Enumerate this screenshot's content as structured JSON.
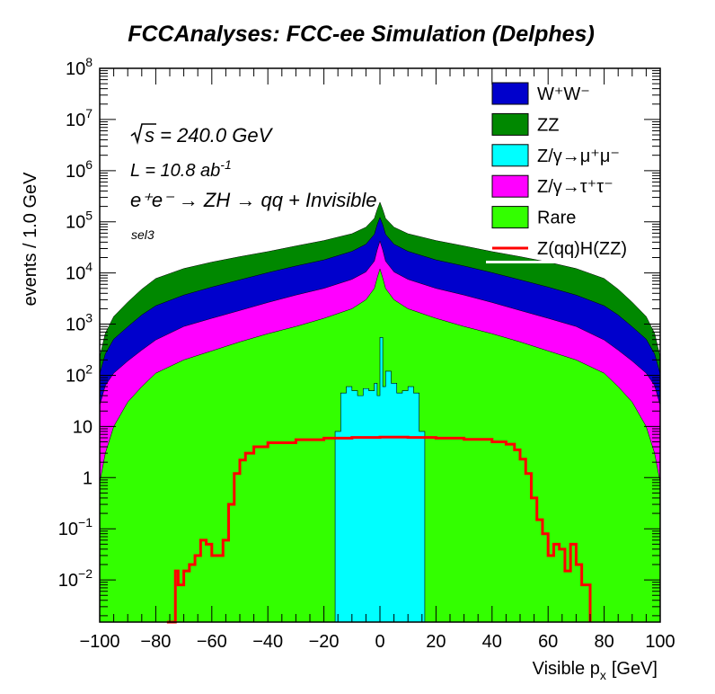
{
  "chart_data": {
    "type": "area",
    "title": "FCCAnalyses: FCC-ee Simulation (Delphes)",
    "xlabel": "Visible p",
    "xlabel_sub": "x",
    "xlabel_unit": "[GeV]",
    "ylabel": "events / 1.0 GeV",
    "xlim": [
      -100,
      100
    ],
    "ylim": [
      0.0015,
      100000000
    ],
    "yscale": "log",
    "grid": false,
    "legend_position": "top-right",
    "x_ticks": [
      "−100",
      "−80",
      "−60",
      "−40",
      "−20",
      "0",
      "20",
      "40",
      "60",
      "80",
      "100"
    ],
    "y_ticks": [
      {
        "base": "10",
        "exp": "−2"
      },
      {
        "base": "10",
        "exp": "−1"
      },
      {
        "base": "1",
        "exp": ""
      },
      {
        "base": "10",
        "exp": ""
      },
      {
        "base": "10",
        "exp": "2"
      },
      {
        "base": "10",
        "exp": "3"
      },
      {
        "base": "10",
        "exp": "4"
      },
      {
        "base": "10",
        "exp": "5"
      },
      {
        "base": "10",
        "exp": "6"
      },
      {
        "base": "10",
        "exp": "7"
      },
      {
        "base": "10",
        "exp": "8"
      }
    ],
    "annotations": {
      "sqrt_s": "s = 240.0 GeV",
      "lumi_main": "L = 10.8 ab",
      "lumi_exp": "-1",
      "process": "e⁺e⁻ → ZH → qq + Invisible",
      "selection": "sel3"
    },
    "stack": {
      "x": [
        -100,
        -98,
        -95,
        -90,
        -85,
        -80,
        -70,
        -60,
        -50,
        -40,
        -30,
        -20,
        -10,
        -5,
        -2,
        -1,
        0,
        1,
        2,
        5,
        10,
        20,
        30,
        40,
        50,
        60,
        70,
        80,
        85,
        90,
        95,
        98,
        100
      ],
      "series": [
        {
          "name": "Rare",
          "color": "#33ff00",
          "values": [
            0.8,
            3,
            10,
            30,
            60,
            110,
            200,
            300,
            450,
            650,
            900,
            1300,
            2000,
            3000,
            5000,
            8000,
            12000,
            8000,
            5000,
            3000,
            2000,
            1300,
            900,
            650,
            450,
            300,
            200,
            110,
            60,
            30,
            10,
            3,
            0.8
          ]
        },
        {
          "name": "Z/γ→τ⁺τ⁻",
          "color": "#ff00ff",
          "values": [
            25,
            60,
            100,
            160,
            250,
            380,
            700,
            1000,
            1400,
            2000,
            2800,
            3700,
            5500,
            7500,
            12000,
            20000,
            30000,
            20000,
            12000,
            7500,
            5500,
            3700,
            2800,
            2000,
            1400,
            1000,
            700,
            380,
            250,
            160,
            100,
            60,
            25
          ]
        },
        {
          "name": "W⁺W⁻",
          "color": "#0000cc",
          "values": [
            80,
            200,
            400,
            700,
            1200,
            1800,
            2800,
            4000,
            5500,
            7500,
            10000,
            13000,
            19000,
            26000,
            40000,
            60000,
            80000,
            60000,
            40000,
            26000,
            19000,
            13000,
            10000,
            7500,
            5500,
            4000,
            2800,
            1800,
            1200,
            700,
            400,
            200,
            80
          ]
        },
        {
          "name": "ZZ",
          "color": "#008800",
          "values": [
            120,
            400,
            900,
            1800,
            3300,
            5500,
            8500,
            11000,
            13500,
            16000,
            20000,
            25000,
            32000,
            42000,
            60000,
            85000,
            120000,
            85000,
            60000,
            42000,
            32000,
            25000,
            20000,
            16000,
            13500,
            11000,
            8500,
            5500,
            3300,
            1800,
            900,
            400,
            120
          ]
        }
      ]
    },
    "zmumu": {
      "name": "Z/γ→μ⁺μ⁻",
      "color": "#00ffff",
      "x": [
        -16,
        -14,
        -12,
        -10,
        -8,
        -6,
        -4,
        -2,
        -1,
        0,
        1,
        2,
        4,
        6,
        8,
        10,
        12,
        14,
        16
      ],
      "values": [
        8,
        45,
        60,
        50,
        40,
        55,
        50,
        70,
        40,
        550,
        60,
        120,
        70,
        45,
        50,
        60,
        45,
        8,
        8
      ]
    },
    "signal": {
      "name": "Z(qq)H(ZZ)",
      "color": "#ff0000",
      "x": [
        -76,
        -73,
        -72,
        -70,
        -68,
        -66,
        -64,
        -62,
        -60,
        -58,
        -56,
        -54,
        -52,
        -50,
        -48,
        -45,
        -40,
        -30,
        -20,
        -10,
        0,
        10,
        20,
        30,
        40,
        45,
        48,
        50,
        52,
        54,
        56,
        58,
        60,
        62,
        64,
        66,
        68,
        70,
        72,
        75
      ],
      "values": [
        0.0015,
        0.015,
        0.008,
        0.015,
        0.02,
        0.03,
        0.06,
        0.05,
        0.03,
        0.03,
        0.06,
        0.3,
        1.2,
        2.2,
        3.0,
        4.0,
        4.8,
        5.5,
        5.9,
        6.1,
        6.2,
        6.1,
        5.9,
        5.6,
        5.0,
        4.5,
        3.5,
        2.3,
        1.2,
        0.4,
        0.15,
        0.08,
        0.03,
        0.05,
        0.04,
        0.015,
        0.05,
        0.02,
        0.008,
        0.0015
      ]
    },
    "legend": [
      {
        "label": "W⁺W⁻",
        "color": "#0000cc",
        "kind": "box"
      },
      {
        "label": "ZZ",
        "color": "#008800",
        "kind": "box"
      },
      {
        "label": "Z/γ→μ⁺μ⁻",
        "color": "#00ffff",
        "kind": "box"
      },
      {
        "label": "Z/γ→τ⁺τ⁻",
        "color": "#ff00ff",
        "kind": "box"
      },
      {
        "label": "Rare",
        "color": "#33ff00",
        "kind": "box"
      },
      {
        "label": "Z(qq)H(ZZ)",
        "color": "#ff0000",
        "kind": "line"
      }
    ]
  }
}
